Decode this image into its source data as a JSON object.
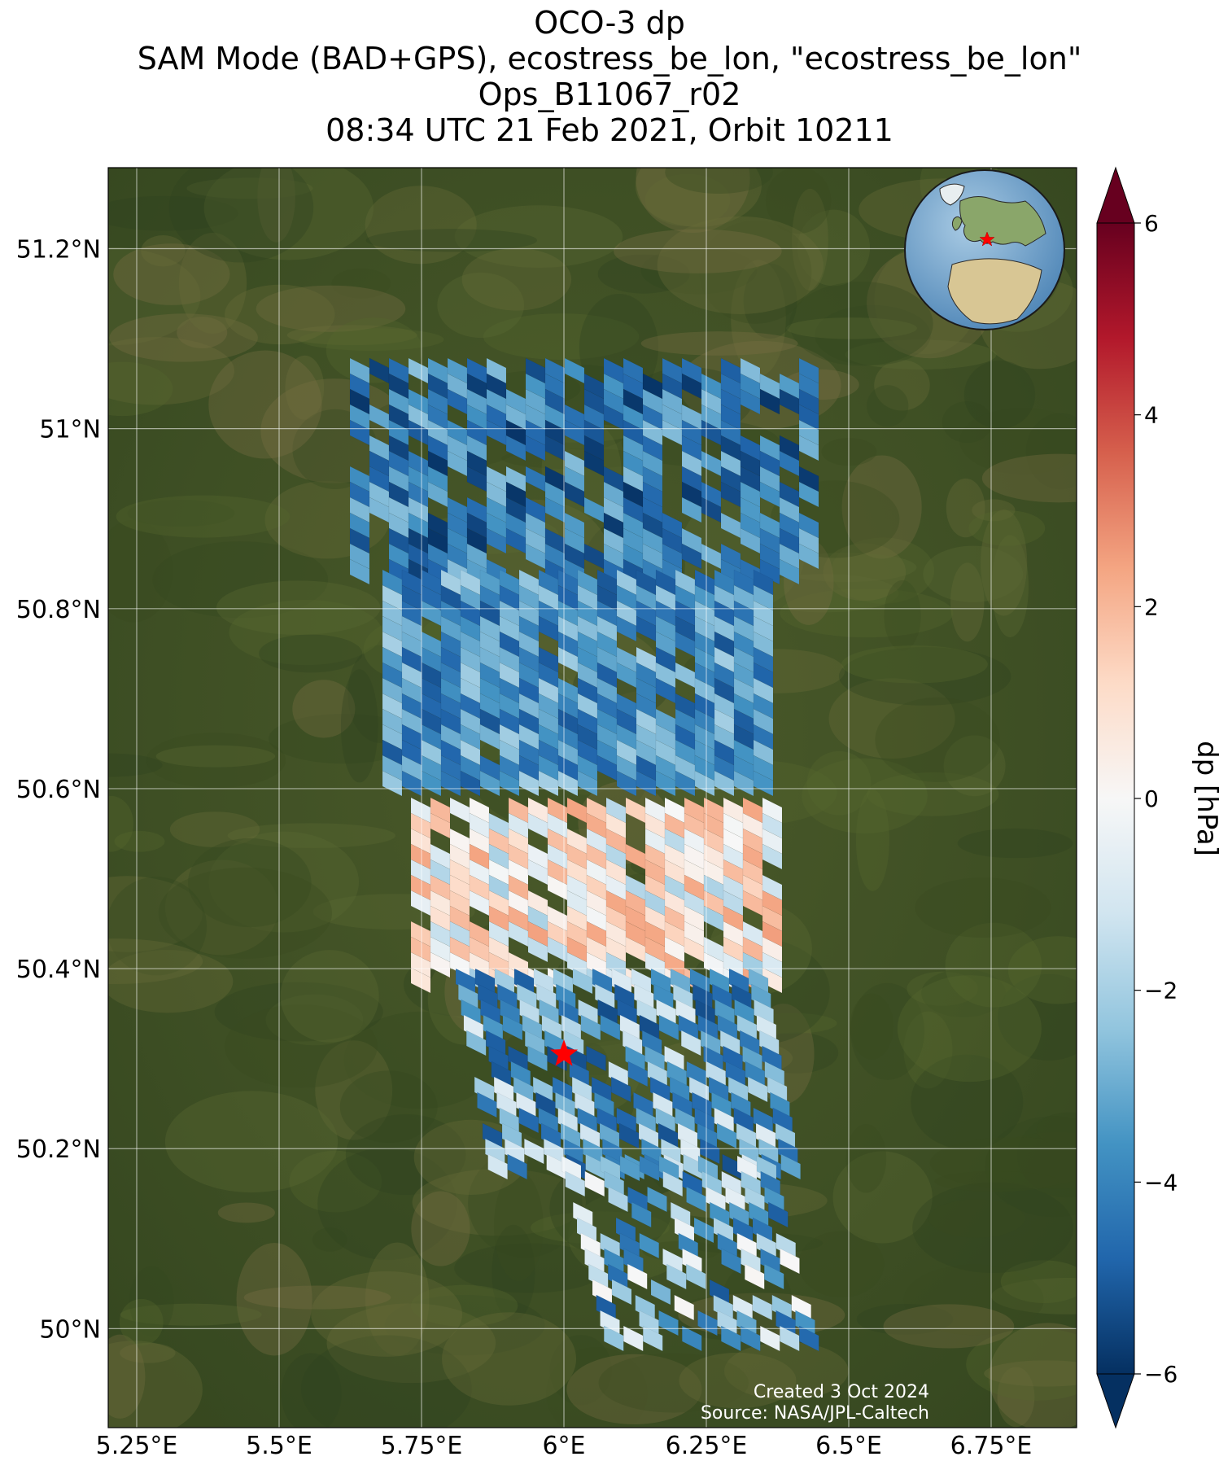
{
  "title": {
    "line1": "OCO-3 dp",
    "line2": "SAM Mode (BAD+GPS), ecostress_be_lon, \"ecostress_be_lon\"",
    "line3": "Ops_B11067_r02",
    "line4": "08:34 UTC 21 Feb 2021, Orbit 10211"
  },
  "map": {
    "lon_range": [
      5.2,
      6.9
    ],
    "lat_range": [
      49.89,
      51.29
    ],
    "lon_ticks": [
      "5.25°E",
      "5.5°E",
      "5.75°E",
      "6°E",
      "6.25°E",
      "6.5°E",
      "6.75°E"
    ],
    "lon_tick_values": [
      5.25,
      5.5,
      5.75,
      6.0,
      6.25,
      6.5,
      6.75
    ],
    "lat_ticks": [
      "51.2°N",
      "51°N",
      "50.8°N",
      "50.6°N",
      "50.4°N",
      "50.2°N",
      "50°N"
    ],
    "lat_tick_values": [
      51.2,
      51.0,
      50.8,
      50.6,
      50.4,
      50.2,
      50.0
    ],
    "target_marker": {
      "lon": 6.0,
      "lat": 50.305,
      "color": "#ff0000"
    },
    "basemap": "satellite imagery",
    "grid": true
  },
  "colorbar": {
    "label": "dp [hPa]",
    "vmin": -6,
    "vmax": 6,
    "ticks": [
      "−6",
      "−4",
      "−2",
      "0",
      "2",
      "4",
      "6"
    ],
    "tick_values": [
      -6,
      -4,
      -2,
      0,
      2,
      4,
      6
    ],
    "colormap": "RdBu_r",
    "extend": "both"
  },
  "inset_globe": {
    "marker": "red star",
    "region": "Europe"
  },
  "footer": {
    "created": "Created 3 Oct 2024",
    "source": "Source: NASA/JPL-Caltech"
  }
}
